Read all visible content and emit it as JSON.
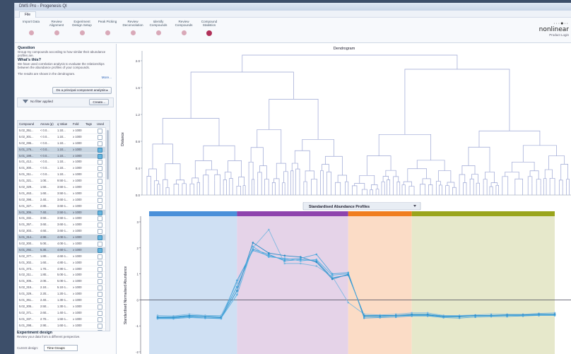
{
  "window": {
    "title": "DMS Pro - Progenesis QI"
  },
  "menubar": {
    "file_tab": "File"
  },
  "workflow": {
    "steps": [
      {
        "label": "Import Data",
        "active": false
      },
      {
        "label": "Review Alignment",
        "active": false
      },
      {
        "label": "Experiment Design Setup",
        "active": false
      },
      {
        "label": "Peak Picking",
        "active": false
      },
      {
        "label": "Review Deconvolution",
        "active": false
      },
      {
        "label": "Identify Compounds",
        "active": false
      },
      {
        "label": "Review Compounds",
        "active": false
      },
      {
        "label": "Compound Statistics",
        "active": true
      }
    ]
  },
  "brand": {
    "mark": "···●··",
    "name": "nonlinear",
    "link": "Product Login"
  },
  "left": {
    "question_title": "Question",
    "question_text": "Group my compounds according to how similar their abundance profiles are.",
    "what_title": "What's this?",
    "what_text": "We have used correlation analysis to evaluate the relationships between the abundance profiles of your compounds.",
    "results_text": "The results are shown in the dendrogram.",
    "more_link": "More...",
    "pca_button": "Do a principal component analysis ▸",
    "filter_text": "No filter applied",
    "create_button": "Create...",
    "table_headers": [
      "Compound",
      "Anova (p)",
      "q Value",
      "Fold",
      "Tags",
      "Used"
    ],
    "rows": [
      {
        "c": [
          "5.02_351...",
          "< 0.0...",
          "1.1E...",
          "≥ 1000"
        ],
        "sel": false
      },
      {
        "c": [
          "5.02_301...",
          "< 0.0...",
          "1.1E...",
          "≥ 1000"
        ],
        "sel": false
      },
      {
        "c": [
          "5.02_295...",
          "< 0.0...",
          "1.1E...",
          "≥ 1000"
        ],
        "sel": false
      },
      {
        "c": [
          "5.01_176...",
          "< 0.0...",
          "1.1E...",
          "≥ 1000"
        ],
        "sel": true
      },
      {
        "c": [
          "5.01_199...",
          "< 0.0...",
          "1.1E...",
          "≥ 1000"
        ],
        "sel": true
      },
      {
        "c": [
          "5.01_412...",
          "< 0.0...",
          "1.1E...",
          "≥ 1000"
        ],
        "sel": false
      },
      {
        "c": [
          "5.01_300...",
          "< 0.0...",
          "1.1E...",
          "≥ 1000"
        ],
        "sel": false
      },
      {
        "c": [
          "5.01_311...",
          "< 0.0...",
          "1.1E...",
          "≥ 1000"
        ],
        "sel": false
      },
      {
        "c": [
          "5.01_321...",
          "1.0E...",
          "9.5E-1...",
          "≥ 1000"
        ],
        "sel": false
      },
      {
        "c": [
          "5.02_329...",
          "1.5E...",
          "3.5E-1...",
          "≥ 1000"
        ],
        "sel": false
      },
      {
        "c": [
          "5.01_463...",
          "1.6E...",
          "3.5E-1...",
          "≥ 1000"
        ],
        "sel": false
      },
      {
        "c": [
          "5.02_398...",
          "2.4E...",
          "3.6E-1...",
          "≥ 1000"
        ],
        "sel": false
      },
      {
        "c": [
          "5.01_327...",
          "2.8E...",
          "3.6E-1...",
          "≥ 1000"
        ],
        "sel": false
      },
      {
        "c": [
          "5.01_306...",
          "7.4E...",
          "2.5E-1...",
          "≥ 1000"
        ],
        "sel": true
      },
      {
        "c": [
          "5.01_332...",
          "3.5E...",
          "3.5E-1...",
          "≥ 1000"
        ],
        "sel": false
      },
      {
        "c": [
          "5.01_357...",
          "3.6E...",
          "3.6E-1...",
          "≥ 1000"
        ],
        "sel": false
      },
      {
        "c": [
          "5.02_303...",
          "4.6E...",
          "3.6E-1...",
          "≥ 1000"
        ],
        "sel": false
      },
      {
        "c": [
          "5.01_314...",
          "4.9E...",
          "4.0E-1...",
          "≥ 1000"
        ],
        "sel": true
      },
      {
        "c": [
          "5.02_300...",
          "5.0E...",
          "4.0E-1...",
          "≥ 1000"
        ],
        "sel": false
      },
      {
        "c": [
          "5.01_292...",
          "5.3E...",
          "4.6E-1...",
          "≥ 1000"
        ],
        "sel": true
      },
      {
        "c": [
          "5.02_377...",
          "1.8E...",
          "4.6E-1...",
          "≥ 1000"
        ],
        "sel": false
      },
      {
        "c": [
          "5.01_302...",
          "1.6E...",
          "4.8E-1...",
          "≥ 1000"
        ],
        "sel": false
      },
      {
        "c": [
          "5.01_373...",
          "1.7E...",
          "4.9E-1...",
          "≥ 1000"
        ],
        "sel": false
      },
      {
        "c": [
          "5.02_311...",
          "1.8E...",
          "5.0E-1...",
          "≥ 1000"
        ],
        "sel": false
      },
      {
        "c": [
          "5.01_305...",
          "2.0E...",
          "5.0E-1...",
          "≥ 1000"
        ],
        "sel": false
      },
      {
        "c": [
          "5.02_315...",
          "2.1E...",
          "5.1E-1...",
          "≥ 1000"
        ],
        "sel": false
      },
      {
        "c": [
          "5.01_329...",
          "2.2E...",
          "1.2E-1...",
          "≥ 1000"
        ],
        "sel": false
      },
      {
        "c": [
          "5.01_361...",
          "2.4E...",
          "1.3E-1...",
          "≥ 1000"
        ],
        "sel": false
      },
      {
        "c": [
          "5.02_305...",
          "2.5E...",
          "1.3E-1...",
          "≥ 1000"
        ],
        "sel": false
      },
      {
        "c": [
          "5.02_371...",
          "2.6E...",
          "1.4E-1...",
          "≥ 1000"
        ],
        "sel": false
      },
      {
        "c": [
          "5.01_337...",
          "2.7E...",
          "1.5E-1...",
          "≥ 1000"
        ],
        "sel": false
      },
      {
        "c": [
          "5.01_298...",
          "2.9E...",
          "1.6E-1...",
          "≥ 1000"
        ],
        "sel": false
      },
      {
        "c": [
          "5.02_310...",
          "3.0E...",
          "1.7E-1...",
          "≥ 1000"
        ],
        "sel": false
      },
      {
        "c": [
          "5.01_326...",
          "3.1E...",
          "1.8E-1...",
          "≥ 1000"
        ],
        "sel": false
      },
      {
        "c": [
          "5.02_330...",
          "3.3E...",
          "1.9E-1...",
          "≥ 1000"
        ],
        "sel": false
      },
      {
        "c": [
          "5.01_354...",
          "3.4E...",
          "2.0E-1...",
          "≥ 1000"
        ],
        "sel": false
      }
    ],
    "experiment_title": "Experiment design",
    "experiment_text": "Review your data from a different perspective.",
    "current_design_label": "Current design:",
    "current_design_value": "Time Groups"
  },
  "dendrogram": {
    "title": "Dendrogram",
    "ylabel": "Distance",
    "yticks": [
      "2.0",
      "1.6",
      "1.2",
      "0.8",
      "0.4",
      "0.0"
    ]
  },
  "profiles": {
    "dropdown_value": "Standardised Abundance Profiles",
    "ylabel": "Standardised Normalised Abundance",
    "yticks": [
      "3",
      "2",
      "1",
      "0",
      "-1",
      "-2"
    ],
    "group_colors": [
      "#4a90d9",
      "#8e44ad",
      "#f07d1e",
      "#9aa51c"
    ],
    "group_fills": [
      "#cfe0f3",
      "#e5d3e8",
      "#fbdcc6",
      "#e6e8cb"
    ]
  },
  "chart_data": {
    "type": "line",
    "x": [
      1,
      2,
      3,
      4,
      5,
      6,
      7,
      8,
      9,
      10,
      11,
      12,
      13,
      14,
      15,
      16,
      17,
      18,
      19,
      20,
      21,
      22,
      23,
      24,
      25,
      26
    ],
    "series": [
      {
        "values": [
          -0.65,
          -0.65,
          -0.6,
          -0.62,
          -0.65,
          0.5,
          1.95,
          1.75,
          1.5,
          1.55,
          1.5,
          0.85,
          0.95,
          -0.6,
          -0.6,
          -0.6,
          -0.55,
          -0.55,
          -0.62,
          -0.62,
          -0.6,
          -0.6,
          -0.6,
          -0.6,
          -0.55,
          -0.55
        ]
      },
      {
        "values": [
          -0.7,
          -0.7,
          -0.65,
          -0.7,
          -0.7,
          0.2,
          2.05,
          1.65,
          1.6,
          1.5,
          1.55,
          0.95,
          1.0,
          -0.65,
          -0.65,
          -0.62,
          -0.6,
          -0.6,
          -0.65,
          -0.65,
          -0.62,
          -0.62,
          -0.6,
          -0.6,
          -0.58,
          -0.58
        ]
      },
      {
        "values": [
          -0.6,
          -0.62,
          -0.55,
          -0.6,
          -0.6,
          0.65,
          2.0,
          2.7,
          1.4,
          1.4,
          1.3,
          0.9,
          -0.1,
          -0.55,
          -0.58,
          -0.55,
          -0.5,
          -0.5,
          -0.6,
          -0.6,
          -0.58,
          -0.55,
          -0.55,
          -0.55,
          -0.52,
          -0.5
        ]
      },
      {
        "values": [
          -0.68,
          -0.68,
          -0.62,
          -0.66,
          -0.68,
          0.35,
          2.2,
          1.8,
          1.7,
          1.65,
          1.45,
          0.8,
          0.98,
          -0.62,
          -0.62,
          -0.6,
          -0.58,
          -0.58,
          -0.64,
          -0.64,
          -0.6,
          -0.6,
          -0.58,
          -0.58,
          -0.55,
          -0.55
        ]
      },
      {
        "values": [
          -0.72,
          -0.72,
          -0.68,
          -0.7,
          -0.72,
          0.75,
          1.9,
          1.7,
          1.55,
          1.6,
          1.75,
          1.0,
          1.05,
          -0.7,
          -0.68,
          -0.66,
          -0.62,
          -0.62,
          -0.68,
          -0.7,
          -0.66,
          -0.64,
          -0.64,
          -0.62,
          -0.6,
          -0.6
        ]
      }
    ],
    "ylim": [
      -2,
      3
    ],
    "groups": [
      {
        "from": 1,
        "to": 6
      },
      {
        "from": 6,
        "to": 13
      },
      {
        "from": 13,
        "to": 17
      },
      {
        "from": 17,
        "to": 26
      }
    ],
    "ylabel": "Standardised Normalised Abundance"
  }
}
